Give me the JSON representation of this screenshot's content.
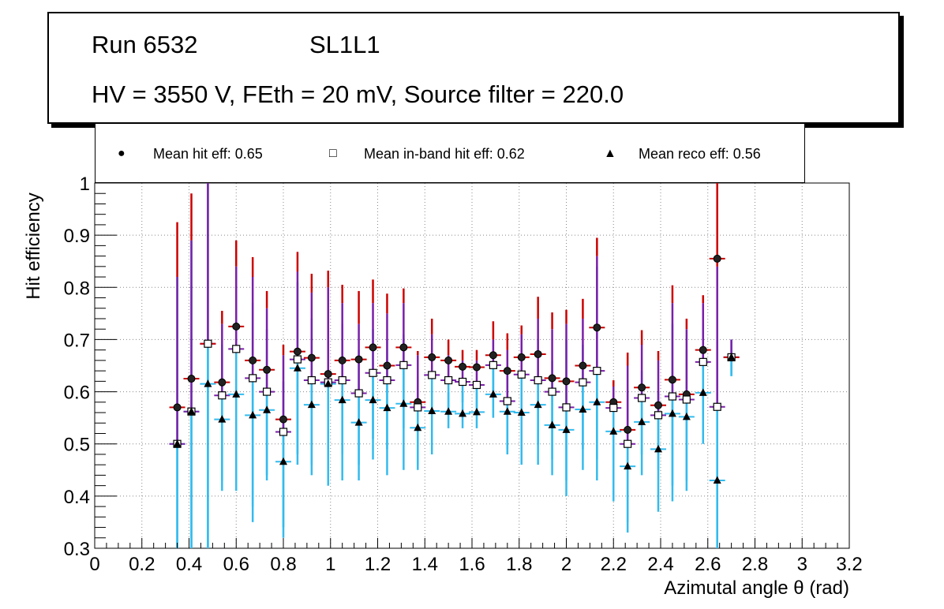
{
  "title": {
    "run": "Run 6532",
    "layer": "SL1L1",
    "conditions": "HV = 3550 V, FEth = 20 mV, Source filter = 220.0"
  },
  "legend": {
    "hit_label": "Mean hit  eff: 0.65",
    "inband_label": "Mean in-band hit eff: 0.62",
    "reco_label": "Mean reco eff: 0.56",
    "hit_marker": "●",
    "inband_marker": "□",
    "reco_marker": "▲"
  },
  "colors": {
    "hit_error_up": "#cc0000",
    "hit_error_mid": "#7a1fa8",
    "inband_error": "#33bbee",
    "reco_error": "#33bbee",
    "grid": "#888888"
  },
  "chart_data": {
    "type": "scatter",
    "title": "Run 6532   SL1L1",
    "xlabel": "Azimutal angle θ (rad)",
    "ylabel": "Hit efficiency",
    "xlim": [
      0,
      3.2
    ],
    "ylim": [
      0.3,
      1.0
    ],
    "xticks": [
      "0",
      "0.2",
      "0.4",
      "0.6",
      "0.8",
      "1",
      "1.2",
      "1.4",
      "1.6",
      "1.8",
      "2",
      "2.2",
      "2.4",
      "2.6",
      "2.8",
      "3",
      "3.2"
    ],
    "yticks": [
      "0.3",
      "0.4",
      "0.5",
      "0.6",
      "0.7",
      "0.8",
      "0.9",
      "1"
    ],
    "grid": true,
    "x": [
      0.35,
      0.41,
      0.48,
      0.54,
      0.6,
      0.67,
      0.73,
      0.8,
      0.86,
      0.92,
      0.99,
      1.05,
      1.12,
      1.18,
      1.24,
      1.31,
      1.37,
      1.43,
      1.5,
      1.56,
      1.62,
      1.69,
      1.75,
      1.81,
      1.88,
      1.94,
      2.0,
      2.07,
      2.13,
      2.2,
      2.26,
      2.32,
      2.39,
      2.45,
      2.51,
      2.58,
      2.64,
      2.7
    ],
    "series": [
      {
        "name": "Mean hit  eff: 0.65",
        "marker": "circle",
        "values": [
          0.57,
          0.625,
          0.692,
          0.618,
          0.725,
          0.66,
          0.642,
          0.547,
          0.677,
          0.665,
          0.634,
          0.66,
          0.662,
          0.685,
          0.65,
          0.685,
          0.58,
          0.666,
          0.66,
          0.648,
          0.647,
          0.67,
          0.64,
          0.666,
          0.672,
          0.626,
          0.62,
          0.65,
          0.723,
          0.58,
          0.527,
          0.608,
          0.574,
          0.623,
          0.595,
          0.68,
          0.855,
          0.666
        ],
        "err_up": [
          0.925,
          0.98,
          1.0,
          0.755,
          0.89,
          0.858,
          0.793,
          0.69,
          0.868,
          0.826,
          0.832,
          0.805,
          0.793,
          0.815,
          0.788,
          0.798,
          0.678,
          0.74,
          0.7,
          0.68,
          0.68,
          0.735,
          0.712,
          0.727,
          0.782,
          0.752,
          0.757,
          0.778,
          0.895,
          0.622,
          0.675,
          0.718,
          0.678,
          0.804,
          0.74,
          0.785,
          1.0,
          0.7
        ],
        "err_down": [
          0.3,
          0.3,
          0.3,
          0.46,
          0.45,
          0.38,
          0.47,
          0.34,
          0.48,
          0.5,
          0.44,
          0.51,
          0.53,
          0.56,
          0.52,
          0.57,
          0.48,
          0.59,
          0.6,
          0.61,
          0.61,
          0.6,
          0.57,
          0.6,
          0.56,
          0.5,
          0.48,
          0.52,
          0.55,
          0.53,
          0.38,
          0.5,
          0.47,
          0.44,
          0.45,
          0.57,
          0.3,
          0.63
        ]
      },
      {
        "name": "Mean in-band hit eff: 0.62",
        "marker": "open-square",
        "values": [
          0.5,
          0.562,
          0.692,
          0.593,
          0.682,
          0.626,
          0.6,
          0.523,
          0.662,
          0.622,
          0.618,
          0.622,
          0.597,
          0.636,
          0.622,
          0.651,
          0.57,
          0.632,
          0.622,
          0.619,
          0.613,
          0.651,
          0.582,
          0.633,
          0.622,
          0.6,
          0.57,
          0.618,
          0.64,
          0.569,
          0.5,
          0.588,
          0.555,
          0.591,
          0.585,
          0.657,
          0.571,
          0.666
        ],
        "err_up": [
          0.82,
          0.89,
          1.0,
          0.73,
          0.84,
          0.82,
          0.76,
          0.67,
          0.83,
          0.79,
          0.8,
          0.77,
          0.73,
          0.77,
          0.75,
          0.77,
          0.67,
          0.71,
          0.67,
          0.66,
          0.66,
          0.7,
          0.68,
          0.71,
          0.74,
          0.72,
          0.73,
          0.74,
          0.86,
          0.61,
          0.65,
          0.69,
          0.66,
          0.77,
          0.72,
          0.77,
          0.84,
          0.7
        ],
        "err_down": [
          0.3,
          0.3,
          0.3,
          0.43,
          0.41,
          0.35,
          0.44,
          0.32,
          0.46,
          0.46,
          0.42,
          0.48,
          0.46,
          0.51,
          0.49,
          0.53,
          0.46,
          0.56,
          0.57,
          0.58,
          0.57,
          0.59,
          0.49,
          0.57,
          0.5,
          0.47,
          0.43,
          0.49,
          0.47,
          0.5,
          0.35,
          0.48,
          0.45,
          0.42,
          0.43,
          0.55,
          0.3,
          0.63
        ]
      },
      {
        "name": "Mean reco eff: 0.56",
        "marker": "filled-triangle",
        "values": [
          0.5,
          0.562,
          0.615,
          0.547,
          0.595,
          0.555,
          0.565,
          0.466,
          0.645,
          0.575,
          0.615,
          0.584,
          0.541,
          0.584,
          0.569,
          0.577,
          0.531,
          0.563,
          0.562,
          0.558,
          0.561,
          0.595,
          0.562,
          0.56,
          0.575,
          0.536,
          0.527,
          0.566,
          0.58,
          0.524,
          0.457,
          0.542,
          0.49,
          0.558,
          0.552,
          0.598,
          0.43,
          0.666
        ],
        "err_up": [
          0.82,
          0.89,
          1.0,
          0.69,
          0.79,
          0.77,
          0.72,
          0.62,
          0.81,
          0.74,
          0.8,
          0.73,
          0.68,
          0.72,
          0.7,
          0.71,
          0.63,
          0.65,
          0.6,
          0.6,
          0.61,
          0.65,
          0.65,
          0.66,
          0.7,
          0.66,
          0.7,
          0.69,
          0.84,
          0.56,
          0.6,
          0.64,
          0.6,
          0.73,
          0.68,
          0.73,
          0.7,
          0.7
        ],
        "err_down": [
          0.3,
          0.3,
          0.3,
          0.41,
          0.45,
          0.38,
          0.43,
          0.34,
          0.48,
          0.44,
          0.42,
          0.43,
          0.43,
          0.47,
          0.44,
          0.45,
          0.45,
          0.48,
          0.53,
          0.53,
          0.53,
          0.55,
          0.48,
          0.46,
          0.46,
          0.44,
          0.4,
          0.45,
          0.43,
          0.39,
          0.33,
          0.44,
          0.37,
          0.39,
          0.41,
          0.5,
          0.3,
          0.63
        ]
      }
    ]
  }
}
